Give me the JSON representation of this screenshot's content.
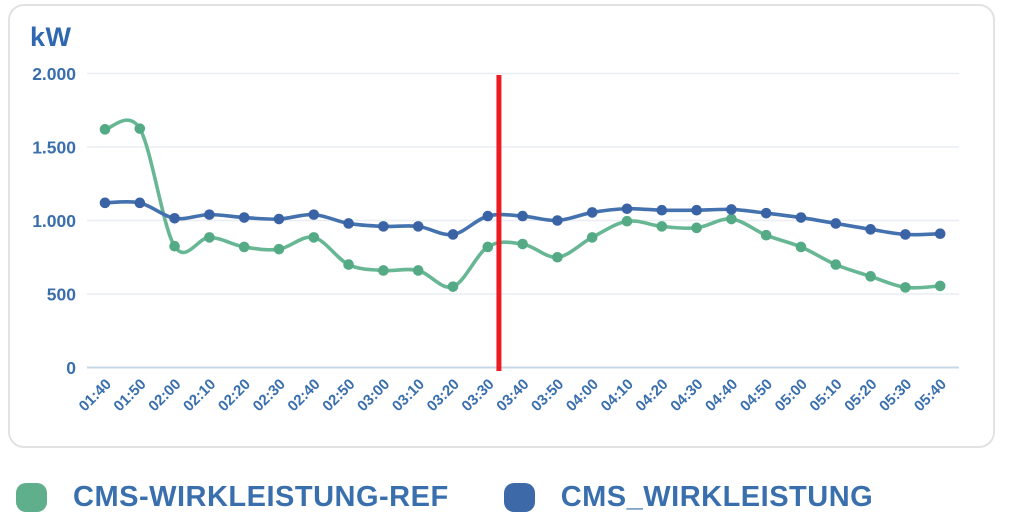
{
  "chart_data": {
    "type": "line",
    "title": "",
    "ylabel": "kW",
    "xlabel": "",
    "ylim": [
      0,
      2000
    ],
    "yticks": [
      0,
      500,
      1000,
      1500,
      2000
    ],
    "ytick_labels": [
      "0",
      "500",
      "1.000",
      "1.500",
      "2.000"
    ],
    "grid": true,
    "legend_position": "bottom",
    "x": [
      "01:40",
      "01:50",
      "02:00",
      "02:10",
      "02:20",
      "02:30",
      "02:40",
      "02:50",
      "03:00",
      "03:10",
      "03:20",
      "03:30",
      "03:40",
      "03:50",
      "04:00",
      "04:10",
      "04:20",
      "04:30",
      "04:40",
      "04:50",
      "05:00",
      "05:10",
      "05:20",
      "05:30",
      "05:40"
    ],
    "series": [
      {
        "name": "CMS-WIRKLEISTUNG-REF",
        "line_color": "#67b794",
        "point_color": "#55aa86",
        "values": [
          1620,
          1625,
          825,
          885,
          820,
          805,
          885,
          700,
          660,
          660,
          550,
          820,
          840,
          750,
          885,
          995,
          960,
          950,
          1010,
          900,
          820,
          700,
          620,
          545,
          555
        ]
      },
      {
        "name": "CMS_WIRKLEISTUNG",
        "line_color": "#4472ae",
        "point_color": "#3a63a6",
        "values": [
          1120,
          1120,
          1015,
          1040,
          1020,
          1010,
          1040,
          980,
          960,
          960,
          905,
          1030,
          1030,
          1000,
          1055,
          1080,
          1070,
          1070,
          1075,
          1050,
          1020,
          980,
          940,
          905,
          910
        ]
      }
    ],
    "cursor": {
      "time_index": 11.32,
      "color": "#ec1c24"
    }
  },
  "legend": {
    "items": [
      {
        "label": "CMS-WIRKLEISTUNG-REF",
        "color": "#5fae8c"
      },
      {
        "label": "CMS_WIRKLEISTUNG",
        "color": "#3d69a8"
      }
    ]
  },
  "colors": {
    "axis_label": "#3a6fae",
    "axis_title": "#2f68b0",
    "gridline": "#e9eef4",
    "zero_line": "#c9d8e7",
    "card_border": "#e2e2e5",
    "background": "#ffffff"
  }
}
